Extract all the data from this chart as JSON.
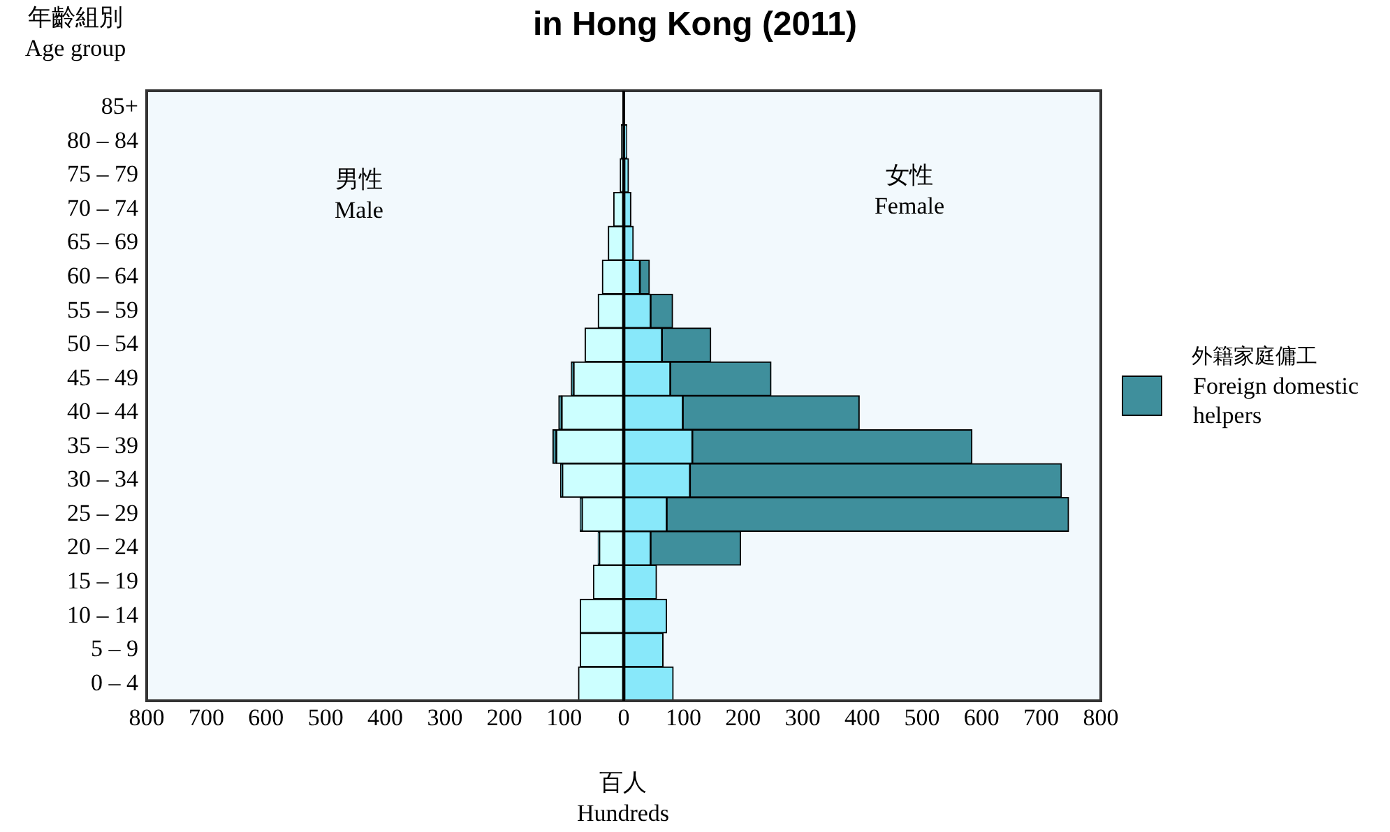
{
  "chart_data": {
    "type": "bar",
    "title": "in Hong Kong (2011)",
    "orientation": "horizontal",
    "stacked": true,
    "xlabel": "百人 Hundreds",
    "ylabel": "年齡組別 Age group",
    "legend_title": "外籍家庭傭工",
    "categories": [
      "85+",
      "80 – 84",
      "75 – 79",
      "70 – 74",
      "65 – 69",
      "60 – 64",
      "55 – 59",
      "50 – 54",
      "45 – 49",
      "40 – 44",
      "35 – 39",
      "30 – 34",
      "25 – 29",
      "20 – 24",
      "15 – 19",
      "10 – 14",
      "5 – 9",
      "0 – 4"
    ],
    "series": [
      {
        "color": "#ccffff",
        "values": [
          null,
          -4,
          -6,
          -17,
          -26,
          -36,
          -43,
          -65,
          -84,
          -104,
          -113,
          -103,
          -70,
          -41,
          -51,
          -73,
          -73,
          -76
        ]
      },
      {
        "color": "#3f8f9c",
        "values": [
          0,
          0,
          0,
          0,
          0,
          0,
          0,
          0,
          -4,
          -5,
          -6,
          -3,
          -3,
          -2,
          0,
          0,
          0,
          0
        ]
      },
      {
        "color": "#88e8fa",
        "values": [
          null,
          5,
          8,
          12,
          16,
          27,
          45,
          64,
          78,
          99,
          115,
          111,
          72,
          45,
          55,
          72,
          66,
          83
        ]
      },
      {
        "name": "Foreign domestic helpers",
        "color": "#3f8f9c",
        "values": [
          0,
          0,
          0,
          0,
          0,
          16,
          37,
          82,
          169,
          296,
          469,
          623,
          674,
          151,
          0,
          0,
          0,
          0
        ]
      }
    ],
    "xlim": [
      -800,
      800
    ],
    "xticks": [
      {
        "value": -800,
        "label": "800"
      },
      {
        "value": -700,
        "label": "700"
      },
      {
        "value": -600,
        "label": "600"
      },
      {
        "value": -500,
        "label": "500"
      },
      {
        "value": -400,
        "label": "400"
      },
      {
        "value": -300,
        "label": "300"
      },
      {
        "value": -200,
        "label": "200"
      },
      {
        "value": -100,
        "label": "100"
      },
      0,
      100,
      200,
      300,
      400,
      500,
      600,
      700,
      800
    ],
    "grid": "x",
    "legend": "right",
    "annotations": [
      "男性 Male",
      "女性 Female"
    ]
  }
}
